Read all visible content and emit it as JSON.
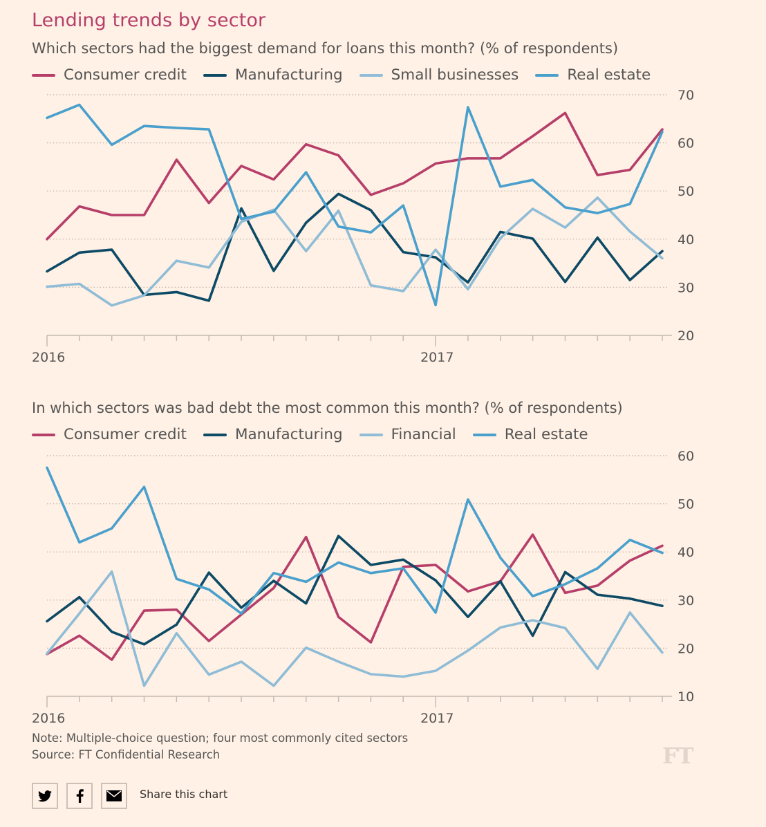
{
  "title": "Lending trends by sector",
  "note": "Note: Multiple-choice question; four most commonly cited sectors",
  "source": "Source: FT Confidential Research",
  "logo": "FT",
  "share": {
    "label": "Share this chart",
    "buttons": [
      {
        "name": "twitter",
        "icon": "twitter-icon"
      },
      {
        "name": "facebook",
        "icon": "facebook-icon"
      },
      {
        "name": "email",
        "icon": "email-icon"
      }
    ]
  },
  "colors": {
    "consumer_credit": "#b63f6a",
    "manufacturing": "#0d4a66",
    "light_blue": "#8fbcd6",
    "real_estate": "#4aa0cd",
    "background": "#fff1e5"
  },
  "chart_data": [
    {
      "type": "line",
      "title": "Which sectors had the biggest demand for loans this month? (% of respondents)",
      "xlabel": "",
      "ylabel": "",
      "x": [
        "2016-01",
        "2016-02",
        "2016-03",
        "2016-04",
        "2016-05",
        "2016-06",
        "2016-07",
        "2016-08",
        "2016-09",
        "2016-10",
        "2016-11",
        "2016-12",
        "2017-01",
        "2017-02",
        "2017-03",
        "2017-04",
        "2017-05",
        "2017-06",
        "2017-07",
        "2017-08"
      ],
      "x_tick_labels": [
        {
          "index": 0,
          "label": "2016"
        },
        {
          "index": 12,
          "label": "2017"
        }
      ],
      "ylim": [
        20,
        70
      ],
      "yticks": [
        20,
        30,
        40,
        50,
        60,
        70
      ],
      "grid": true,
      "legend_position": "top",
      "series": [
        {
          "name": "Consumer credit",
          "color": "#b63f6a",
          "values": [
            40,
            46.8,
            45,
            45,
            56.5,
            47.5,
            55.2,
            52.4,
            59.7,
            57.4,
            49.2,
            51.6,
            55.7,
            56.8,
            56.8,
            61.4,
            66.2,
            53.3,
            54.4,
            62.8
          ]
        },
        {
          "name": "Manufacturing",
          "color": "#0d4a66",
          "values": [
            33.3,
            37.2,
            37.8,
            28.4,
            29,
            27.2,
            46.4,
            33.4,
            43.4,
            49.4,
            46,
            37.3,
            36.2,
            31,
            41.5,
            40.1,
            31.1,
            40.3,
            31.5,
            37.5
          ]
        },
        {
          "name": "Small businesses",
          "color": "#8fbcd6",
          "values": [
            30.1,
            30.7,
            26.2,
            28.3,
            35.5,
            34.1,
            43.6,
            46.1,
            37.5,
            45.9,
            30.4,
            29.2,
            37.8,
            29.6,
            40.2,
            46.3,
            42.4,
            48.6,
            41.6,
            36
          ]
        },
        {
          "name": "Real estate",
          "color": "#4aa0cd",
          "values": [
            65.2,
            67.9,
            59.6,
            63.5,
            63.1,
            62.8,
            44.2,
            45.7,
            53.9,
            42.6,
            41.4,
            47,
            26.3,
            67.4,
            50.9,
            52.3,
            46.6,
            45.4,
            47.3,
            62.3
          ]
        }
      ]
    },
    {
      "type": "line",
      "title": "In which sectors was bad debt the most common this month? (% of respondents)",
      "xlabel": "",
      "ylabel": "",
      "x": [
        "2016-01",
        "2016-02",
        "2016-03",
        "2016-04",
        "2016-05",
        "2016-06",
        "2016-07",
        "2016-08",
        "2016-09",
        "2016-10",
        "2016-11",
        "2016-12",
        "2017-01",
        "2017-02",
        "2017-03",
        "2017-04",
        "2017-05",
        "2017-06",
        "2017-07",
        "2017-08"
      ],
      "x_tick_labels": [
        {
          "index": 0,
          "label": "2016"
        },
        {
          "index": 12,
          "label": "2017"
        }
      ],
      "ylim": [
        10,
        60
      ],
      "yticks": [
        10,
        20,
        30,
        40,
        50,
        60
      ],
      "grid": true,
      "legend_position": "top",
      "series": [
        {
          "name": "Consumer credit",
          "color": "#b63f6a",
          "values": [
            18.8,
            22.6,
            17.6,
            27.8,
            28,
            21.5,
            27,
            32.5,
            43.1,
            26.5,
            21.2,
            36.9,
            37.3,
            31.8,
            33.9,
            43.6,
            31.5,
            33,
            38.2,
            41.3
          ]
        },
        {
          "name": "Manufacturing",
          "color": "#0d4a66",
          "values": [
            25.6,
            30.6,
            23.4,
            20.8,
            24.9,
            35.7,
            28.4,
            34,
            29.3,
            43.3,
            37.3,
            38.4,
            34.1,
            26.5,
            33.9,
            22.6,
            35.8,
            31.1,
            30.3,
            28.8
          ]
        },
        {
          "name": "Financial",
          "color": "#8fbcd6",
          "values": [
            18.9,
            27.2,
            35.9,
            12.2,
            23.1,
            14.5,
            17.2,
            12.2,
            20.1,
            17.2,
            14.6,
            14.1,
            15.3,
            19.5,
            24.3,
            25.8,
            24.2,
            15.7,
            27.4,
            19.1
          ]
        },
        {
          "name": "Real estate",
          "color": "#4aa0cd",
          "values": [
            57.5,
            42,
            44.9,
            53.5,
            34.4,
            32.2,
            27.2,
            35.6,
            33.8,
            37.8,
            35.6,
            36.6,
            27.4,
            50.9,
            38.8,
            30.8,
            33.3,
            36.6,
            42.5,
            39.8
          ]
        }
      ]
    }
  ]
}
